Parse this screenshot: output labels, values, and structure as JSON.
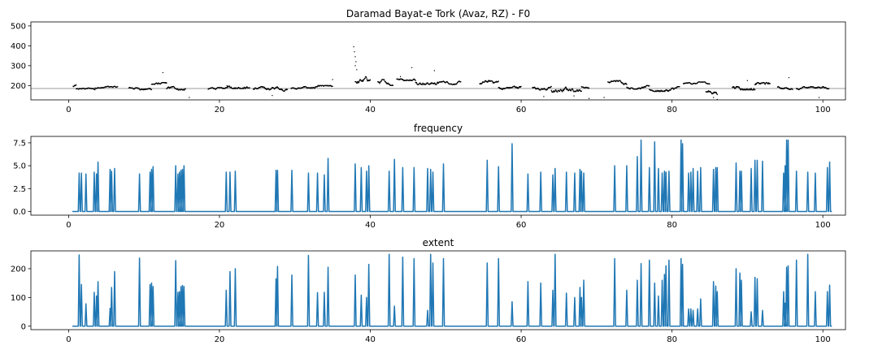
{
  "chart_data": [
    {
      "type": "scatter",
      "title": "Daramad Bayat-e Tork (Avaz, RZ) - F0",
      "xlabel": "",
      "ylabel": "",
      "xlim": [
        -5,
        103
      ],
      "ylim": [
        128,
        520
      ],
      "xticks": [
        0,
        20,
        40,
        60,
        80,
        100
      ],
      "yticks": [
        200,
        300,
        400,
        500
      ],
      "grid": false,
      "reference_line": {
        "y": 185,
        "color": "#bbbbbb"
      },
      "marker_color": "#000000",
      "segments": [
        [
          0.6,
          1.0,
          185,
          205
        ],
        [
          1.0,
          3.5,
          175,
          188
        ],
        [
          3.5,
          6.5,
          182,
          196
        ],
        [
          8.0,
          11.0,
          178,
          195
        ],
        [
          11.0,
          13.0,
          198,
          215
        ],
        [
          13.0,
          15.5,
          175,
          195
        ],
        [
          18.5,
          21.0,
          176,
          190
        ],
        [
          21.0,
          24.0,
          185,
          210
        ],
        [
          24.5,
          29.0,
          172,
          195
        ],
        [
          29.5,
          32.0,
          178,
          195
        ],
        [
          32.0,
          35.0,
          180,
          200
        ],
        [
          38.0,
          40.0,
          205,
          245
        ],
        [
          41.0,
          43.0,
          200,
          230
        ],
        [
          43.5,
          46.0,
          225,
          242
        ],
        [
          46.0,
          49.0,
          205,
          235
        ],
        [
          49.0,
          52.0,
          205,
          222
        ],
        [
          54.5,
          57.0,
          200,
          225
        ],
        [
          57.0,
          60.0,
          178,
          200
        ],
        [
          61.5,
          64.0,
          178,
          200
        ],
        [
          64.0,
          66.0,
          160,
          195
        ],
        [
          66.0,
          68.0,
          170,
          195
        ],
        [
          68.0,
          69.0,
          185,
          200
        ],
        [
          71.5,
          74.0,
          205,
          225
        ],
        [
          74.0,
          77.0,
          182,
          200
        ],
        [
          77.0,
          81.0,
          170,
          195
        ],
        [
          81.5,
          85.0,
          205,
          218
        ],
        [
          84.5,
          86.0,
          150,
          180
        ],
        [
          88.0,
          91.0,
          178,
          205
        ],
        [
          91.0,
          93.0,
          190,
          215
        ],
        [
          94.0,
          96.0,
          180,
          198
        ],
        [
          96.5,
          100.8,
          178,
          195
        ]
      ],
      "outliers": [
        [
          37.8,
          395
        ],
        [
          37.9,
          370
        ],
        [
          38.0,
          345
        ],
        [
          38.1,
          320
        ],
        [
          38.0,
          300
        ],
        [
          38.2,
          280
        ],
        [
          12.5,
          265
        ],
        [
          45.5,
          290
        ],
        [
          48.5,
          275
        ],
        [
          35.0,
          230
        ],
        [
          44.0,
          245
        ],
        [
          86.0,
          130
        ],
        [
          85.5,
          140
        ],
        [
          90.0,
          225
        ],
        [
          95.5,
          240
        ],
        [
          16.0,
          140
        ],
        [
          27.0,
          150
        ],
        [
          63.0,
          145
        ],
        [
          67.0,
          148
        ],
        [
          71.0,
          140
        ],
        [
          69.0,
          135
        ],
        [
          99.5,
          140
        ]
      ]
    },
    {
      "type": "line",
      "title": "frequency",
      "xlabel": "",
      "ylabel": "",
      "xlim": [
        -5,
        103
      ],
      "ylim": [
        -0.4,
        8.2
      ],
      "xticks": [
        0,
        20,
        40,
        60,
        80,
        100
      ],
      "yticks": [
        0.0,
        2.5,
        5.0,
        7.5
      ],
      "ytick_labels": [
        "0.0",
        "2.5",
        "5.0",
        "7.5"
      ],
      "x_start": 0.5,
      "x_end": 101.2,
      "series_color": "#1f77b4",
      "spikes": [
        [
          1.4,
          4.2
        ],
        [
          1.7,
          4.2
        ],
        [
          2.3,
          4.1
        ],
        [
          3.4,
          4.3
        ],
        [
          3.7,
          4.1
        ],
        [
          3.9,
          5.4
        ],
        [
          5.5,
          4.6
        ],
        [
          5.7,
          4.4
        ],
        [
          6.1,
          4.7
        ],
        [
          9.4,
          4.1
        ],
        [
          10.8,
          4.3
        ],
        [
          11.0,
          4.6
        ],
        [
          11.2,
          4.9
        ],
        [
          14.2,
          5.0
        ],
        [
          14.5,
          4.1
        ],
        [
          14.7,
          4.3
        ],
        [
          14.9,
          4.5
        ],
        [
          15.1,
          4.6
        ],
        [
          15.3,
          5.0
        ],
        [
          20.9,
          4.3
        ],
        [
          21.4,
          4.3
        ],
        [
          22.1,
          4.4
        ],
        [
          27.5,
          4.5
        ],
        [
          27.7,
          4.5
        ],
        [
          29.6,
          4.5
        ],
        [
          31.8,
          4.2
        ],
        [
          33.0,
          4.2
        ],
        [
          33.9,
          4.0
        ],
        [
          34.4,
          5.8
        ],
        [
          38.0,
          5.2
        ],
        [
          38.8,
          4.8
        ],
        [
          39.5,
          4.4
        ],
        [
          39.8,
          5.0
        ],
        [
          42.5,
          4.4
        ],
        [
          43.2,
          5.7
        ],
        [
          44.3,
          4.8
        ],
        [
          45.8,
          4.8
        ],
        [
          47.6,
          4.7
        ],
        [
          48.0,
          4.6
        ],
        [
          48.3,
          4.3
        ],
        [
          49.7,
          5.2
        ],
        [
          55.5,
          5.6
        ],
        [
          57.0,
          4.9
        ],
        [
          58.8,
          7.4
        ],
        [
          60.9,
          4.1
        ],
        [
          62.6,
          4.3
        ],
        [
          64.2,
          4.0
        ],
        [
          64.5,
          4.7
        ],
        [
          66.0,
          4.3
        ],
        [
          67.1,
          4.2
        ],
        [
          67.8,
          4.6
        ],
        [
          68.0,
          4.4
        ],
        [
          68.3,
          4.2
        ],
        [
          72.4,
          5.0
        ],
        [
          74.0,
          5.0
        ],
        [
          75.4,
          6.0
        ],
        [
          75.9,
          7.8
        ],
        [
          77.0,
          4.8
        ],
        [
          77.7,
          7.6
        ],
        [
          78.2,
          4.7
        ],
        [
          78.7,
          4.2
        ],
        [
          79.0,
          4.4
        ],
        [
          79.2,
          4.3
        ],
        [
          79.6,
          4.4
        ],
        [
          81.2,
          7.8
        ],
        [
          81.4,
          7.4
        ],
        [
          82.2,
          4.2
        ],
        [
          82.5,
          4.3
        ],
        [
          82.8,
          4.7
        ],
        [
          83.4,
          4.4
        ],
        [
          83.8,
          4.8
        ],
        [
          85.5,
          4.6
        ],
        [
          85.8,
          4.8
        ],
        [
          86.0,
          4.8
        ],
        [
          88.5,
          5.3
        ],
        [
          89.0,
          4.4
        ],
        [
          89.2,
          4.4
        ],
        [
          90.5,
          4.7
        ],
        [
          91.0,
          5.6
        ],
        [
          91.3,
          5.6
        ],
        [
          92.0,
          5.5
        ],
        [
          94.8,
          4.2
        ],
        [
          95.0,
          5.0
        ],
        [
          95.2,
          7.8
        ],
        [
          95.4,
          7.8
        ],
        [
          96.5,
          4.4
        ],
        [
          98.0,
          4.3
        ],
        [
          99.0,
          4.2
        ],
        [
          100.6,
          4.8
        ],
        [
          100.9,
          5.4
        ]
      ]
    },
    {
      "type": "line",
      "title": "extent",
      "xlabel": "",
      "ylabel": "",
      "xlim": [
        -5,
        103
      ],
      "ylim": [
        -12,
        262
      ],
      "xticks": [
        0,
        20,
        40,
        60,
        80,
        100
      ],
      "yticks": [
        0,
        100,
        200
      ],
      "x_start": 0.5,
      "x_end": 101.2,
      "series_color": "#1f77b4",
      "spikes": [
        [
          1.4,
          248
        ],
        [
          1.7,
          145
        ],
        [
          2.3,
          78
        ],
        [
          3.4,
          118
        ],
        [
          3.7,
          105
        ],
        [
          3.9,
          155
        ],
        [
          5.5,
          62
        ],
        [
          5.7,
          135
        ],
        [
          6.1,
          190
        ],
        [
          9.4,
          237
        ],
        [
          10.8,
          145
        ],
        [
          11.0,
          150
        ],
        [
          11.2,
          138
        ],
        [
          14.2,
          228
        ],
        [
          14.5,
          118
        ],
        [
          14.7,
          120
        ],
        [
          14.9,
          138
        ],
        [
          15.1,
          142
        ],
        [
          15.3,
          138
        ],
        [
          20.9,
          125
        ],
        [
          21.4,
          190
        ],
        [
          22.1,
          200
        ],
        [
          27.5,
          165
        ],
        [
          27.7,
          208
        ],
        [
          29.6,
          178
        ],
        [
          31.8,
          246
        ],
        [
          33.0,
          117
        ],
        [
          33.9,
          118
        ],
        [
          34.4,
          205
        ],
        [
          38.0,
          178
        ],
        [
          38.8,
          108
        ],
        [
          39.5,
          100
        ],
        [
          39.8,
          215
        ],
        [
          42.5,
          250
        ],
        [
          43.2,
          70
        ],
        [
          44.3,
          240
        ],
        [
          45.8,
          235
        ],
        [
          47.6,
          55
        ],
        [
          48.0,
          250
        ],
        [
          48.3,
          220
        ],
        [
          49.7,
          235
        ],
        [
          55.5,
          220
        ],
        [
          57.0,
          235
        ],
        [
          58.8,
          85
        ],
        [
          60.9,
          155
        ],
        [
          62.6,
          150
        ],
        [
          64.2,
          125
        ],
        [
          64.5,
          250
        ],
        [
          66.0,
          115
        ],
        [
          67.1,
          100
        ],
        [
          67.8,
          135
        ],
        [
          68.0,
          100
        ],
        [
          68.3,
          160
        ],
        [
          72.4,
          235
        ],
        [
          74.0,
          125
        ],
        [
          75.4,
          160
        ],
        [
          75.9,
          218
        ],
        [
          77.0,
          230
        ],
        [
          77.7,
          150
        ],
        [
          78.2,
          105
        ],
        [
          78.7,
          160
        ],
        [
          79.0,
          180
        ],
        [
          79.2,
          210
        ],
        [
          79.6,
          230
        ],
        [
          81.2,
          235
        ],
        [
          81.4,
          215
        ],
        [
          82.2,
          60
        ],
        [
          82.5,
          60
        ],
        [
          82.8,
          55
        ],
        [
          83.4,
          60
        ],
        [
          83.8,
          95
        ],
        [
          85.5,
          155
        ],
        [
          85.8,
          140
        ],
        [
          86.0,
          120
        ],
        [
          88.5,
          200
        ],
        [
          89.0,
          185
        ],
        [
          89.2,
          160
        ],
        [
          90.5,
          50
        ],
        [
          91.0,
          170
        ],
        [
          91.3,
          165
        ],
        [
          92.0,
          55
        ],
        [
          94.8,
          120
        ],
        [
          95.0,
          80
        ],
        [
          95.2,
          205
        ],
        [
          95.4,
          210
        ],
        [
          96.5,
          230
        ],
        [
          98.0,
          250
        ],
        [
          99.0,
          120
        ],
        [
          100.6,
          120
        ],
        [
          100.9,
          143
        ]
      ]
    }
  ]
}
